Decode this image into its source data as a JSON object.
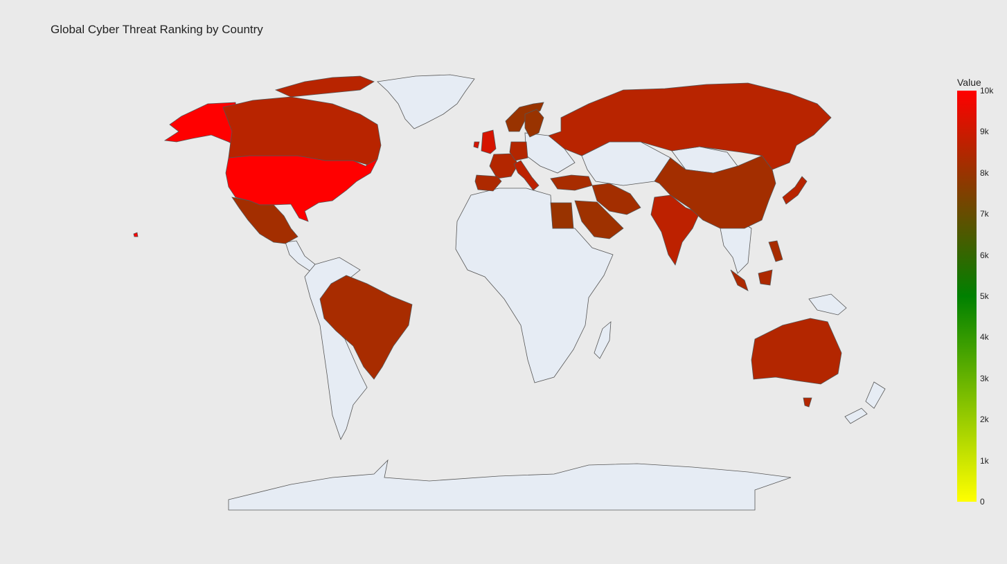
{
  "title": "Global Cyber Threat Ranking by Country",
  "colorbar": {
    "title": "Value",
    "min": 0,
    "max": 10000,
    "tick_labels": [
      "0",
      "1k",
      "2k",
      "3k",
      "4k",
      "5k",
      "6k",
      "7k",
      "8k",
      "9k",
      "10k"
    ],
    "tick_values": [
      0,
      1000,
      2000,
      3000,
      4000,
      5000,
      6000,
      7000,
      8000,
      9000,
      10000
    ],
    "stops": [
      {
        "value": 0,
        "color": "#ffff00"
      },
      {
        "value": 5000,
        "color": "#008000"
      },
      {
        "value": 10000,
        "color": "#ff0000"
      }
    ]
  },
  "map_style": {
    "land_color": "#e6ecf4",
    "border_color": "#555555",
    "background": "#eaeaea"
  },
  "chart_data": {
    "type": "choropleth",
    "projection": "equirectangular",
    "regions": [
      {
        "country": "United States",
        "value": 10000
      },
      {
        "country": "Canada",
        "value": 8600
      },
      {
        "country": "Mexico",
        "value": 8200
      },
      {
        "country": "Brazil",
        "value": 8300
      },
      {
        "country": "United Kingdom",
        "value": 9200
      },
      {
        "country": "France",
        "value": 8500
      },
      {
        "country": "Spain",
        "value": 8400
      },
      {
        "country": "Germany",
        "value": 8500
      },
      {
        "country": "Italy",
        "value": 8700
      },
      {
        "country": "Norway",
        "value": 8000
      },
      {
        "country": "Sweden",
        "value": 8000
      },
      {
        "country": "Russia",
        "value": 8600
      },
      {
        "country": "Turkey",
        "value": 8300
      },
      {
        "country": "Iran",
        "value": 8200
      },
      {
        "country": "Saudi Arabia",
        "value": 8100
      },
      {
        "country": "Egypt",
        "value": 8000
      },
      {
        "country": "India",
        "value": 8700
      },
      {
        "country": "China",
        "value": 8200
      },
      {
        "country": "Japan",
        "value": 8600
      },
      {
        "country": "Indonesia",
        "value": 8400
      },
      {
        "country": "Philippines",
        "value": 8300
      },
      {
        "country": "Australia",
        "value": 8500
      }
    ]
  }
}
